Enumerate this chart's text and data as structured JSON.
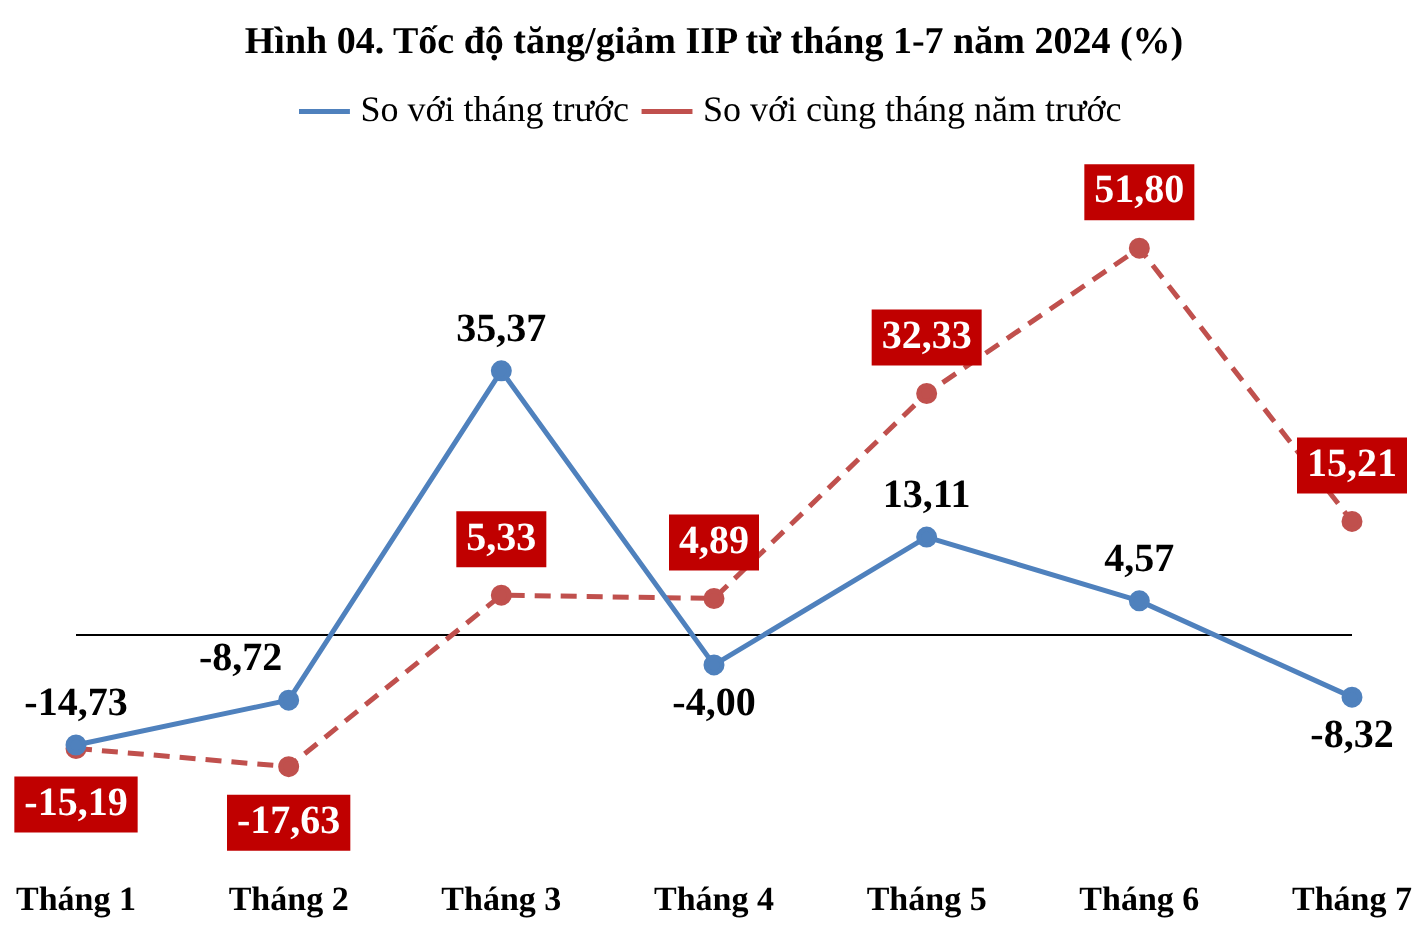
{
  "chart_data": {
    "type": "line",
    "title": "Hình 04. Tốc độ tăng/giảm IIP từ tháng 1-7 năm 2024 (%)",
    "categories": [
      "Tháng 1",
      "Tháng 2",
      "Tháng 3",
      "Tháng 4",
      "Tháng 5",
      "Tháng 6",
      "Tháng 7"
    ],
    "series": [
      {
        "name": "So với tháng trước",
        "color": "#4f81bd",
        "line_style": "solid",
        "values": [
          -14.73,
          -8.72,
          35.37,
          -4.0,
          13.11,
          4.57,
          -8.32
        ],
        "value_labels": [
          "-14,73",
          "-8,72",
          "35,37",
          "-4,00",
          "13,11",
          "4,57",
          "-8,32"
        ]
      },
      {
        "name": "So với cùng tháng năm trước",
        "color": "#c0504d",
        "line_style": "dashed",
        "values": [
          -15.19,
          -17.63,
          5.33,
          4.89,
          32.33,
          51.8,
          15.21
        ],
        "value_labels": [
          "-15,19",
          "-17,63",
          "5,33",
          "4,89",
          "32,33",
          "51,80",
          "15,21"
        ]
      }
    ],
    "marker": "circle",
    "legend": "top",
    "grid": false
  }
}
